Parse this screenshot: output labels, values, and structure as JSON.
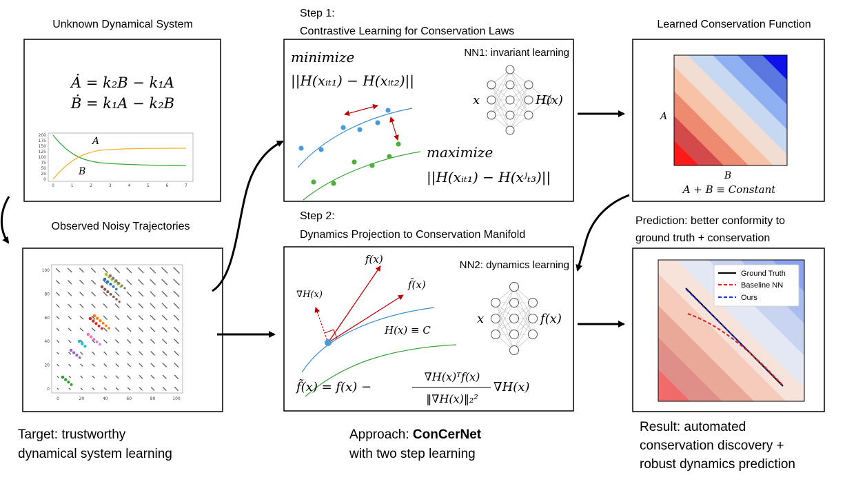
{
  "panels": {
    "unknown_system": {
      "title": "Unknown Dynamical System",
      "eq1": "Ȧ = k₂B − k₁A",
      "eq2": "Ḃ = k₁A − k₂B",
      "curve_a_label": "A",
      "curve_b_label": "B",
      "y_ticks": [
        "200",
        "175",
        "150",
        "125",
        "100",
        "75",
        "50",
        "25",
        "0"
      ],
      "x_ticks": [
        "0",
        "1",
        "2",
        "3",
        "4",
        "5",
        "6",
        "7"
      ]
    },
    "noisy_trajectories": {
      "title": "Observed Noisy Trajectories",
      "y_ticks": [
        "100",
        "80",
        "60",
        "40",
        "20",
        "0"
      ],
      "x_ticks": [
        "0",
        "20",
        "40",
        "60",
        "80",
        "100"
      ]
    },
    "step1": {
      "heading_line1": "Step 1:",
      "heading_line2": "Contrastive Learning for Conservation Laws",
      "nn_label": "NN1: invariant learning",
      "minimize_word": "minimize",
      "minimize_expr": "||H(xᵢₜ₁) − H(xᵢₜ₂)||",
      "maximize_word": "maximize",
      "maximize_expr": "||H(xᵢₜ₁) − H(xʲₜ₃)||",
      "nn_input": "x",
      "nn_output": "H(x)"
    },
    "step2": {
      "heading_line1": "Step 2:",
      "heading_line2": "Dynamics Projection to Conservation Manifold",
      "nn_label": "NN2: dynamics learning",
      "f_label": "f(x)",
      "ftilde_label": "f̃(x)",
      "grad_label": "∇H(x)",
      "manifold_label": "H(x) ≡ C",
      "formula_lhs": "f̃(x) = f(x) −",
      "formula_num": "∇H(x)ᵀf(x)",
      "formula_den": "‖∇H(x)‖₂²",
      "formula_tail": "∇H(x)",
      "nn_input": "x",
      "nn_output": "f(x)"
    },
    "learned_function": {
      "title": "Learned Conservation Function",
      "y_axis": "A",
      "x_axis": "B",
      "caption": "A + B ≡ Constant"
    },
    "prediction": {
      "title_line1": "Prediction: better conformity to",
      "title_line2": "ground truth + conservation",
      "legend": [
        "Ground Truth",
        "Baseline NN",
        "Ours"
      ]
    }
  },
  "captions": {
    "target_line1": "Target: trustworthy",
    "target_line2": "dynamical system learning",
    "approach_prefix": "Approach: ",
    "approach_name": "ConCerNet",
    "approach_line2": "with two step learning",
    "result_line1": "Result: automated",
    "result_line2": "conservation discovery +",
    "result_line3": "robust dynamics prediction"
  },
  "colors": {
    "red_accent": "#c00000",
    "blue_curve": "#3a8fd0",
    "green_curve": "#3aa33a",
    "orange_curve": "#f5b324",
    "legend_truth": "#000000",
    "legend_baseline": "#e02020",
    "legend_ours": "#1f2fd8"
  }
}
